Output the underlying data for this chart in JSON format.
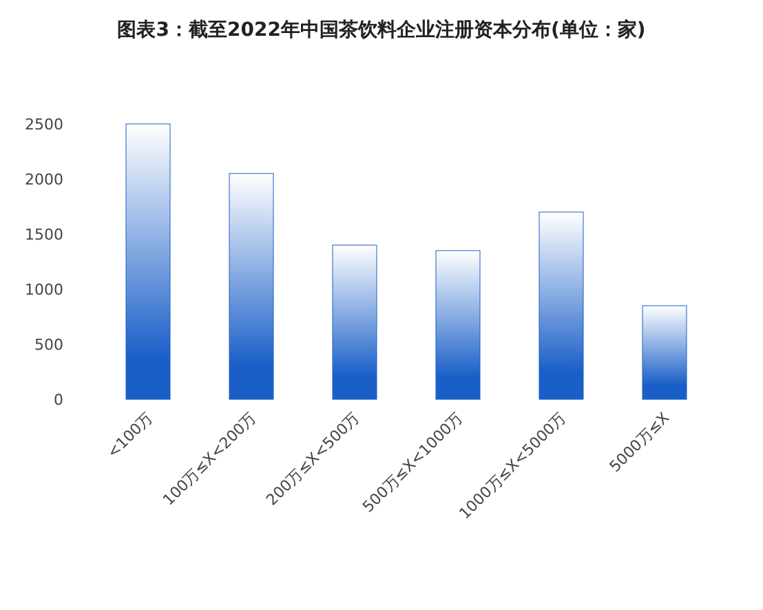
{
  "chart_data": {
    "type": "bar",
    "title": "图表3：截至2022年中国茶饮料企业注册资本分布(单位：家)",
    "categories": [
      "<100万",
      "100万≤X<200万",
      "200万≤X<500万",
      "500万≤X<1000万",
      "1000万≤X<5000万",
      "5000万≤X"
    ],
    "values": [
      2500,
      2050,
      1400,
      1350,
      1700,
      850
    ],
    "color": "#1a5fc8",
    "ylim": [
      0,
      2500
    ],
    "yticks": [
      0,
      500,
      1000,
      1500,
      2000,
      2500
    ]
  }
}
